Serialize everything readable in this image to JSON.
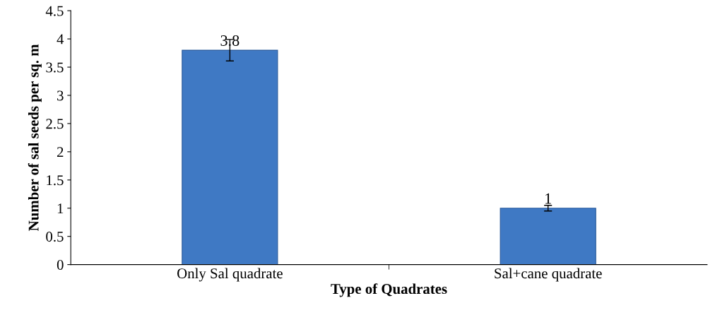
{
  "chart_data": {
    "type": "bar",
    "xlabel": "Type of Quadrates",
    "ylabel": "Number of sal seeds per sq. m",
    "categories": [
      "Only Sal quadrate",
      "Sal+cane quadrate"
    ],
    "values": [
      3.8,
      1
    ],
    "errors": [
      0.19,
      0.05
    ],
    "color": "#3f79c4",
    "data_labels": true,
    "ylim": [
      0,
      4.5
    ],
    "yticks": [
      0,
      0.5,
      1,
      1.5,
      2,
      2.5,
      3,
      3.5,
      4,
      4.5
    ],
    "grid": false,
    "legend": false
  }
}
